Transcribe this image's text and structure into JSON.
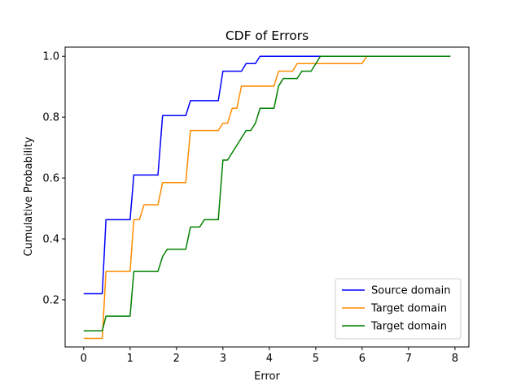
{
  "chart_data": {
    "type": "line",
    "title": "CDF of Errors",
    "xlabel": "Error",
    "ylabel": "Cumulative Probability",
    "xlim": [
      -0.4,
      8.3
    ],
    "ylim": [
      0.045,
      1.03
    ],
    "x_ticks": [
      0,
      1,
      2,
      3,
      4,
      5,
      6,
      7,
      8
    ],
    "y_ticks": [
      0.2,
      0.4,
      0.6,
      0.8,
      1.0
    ],
    "grid": false,
    "legend_position": "lower-right",
    "series": [
      {
        "name": "Source domain",
        "color": "#0000ff",
        "points": [
          [
            0,
            0.22
          ],
          [
            0.4,
            0.22
          ],
          [
            0.48,
            0.463
          ],
          [
            1.0,
            0.463
          ],
          [
            1.08,
            0.61
          ],
          [
            1.6,
            0.61
          ],
          [
            1.7,
            0.805
          ],
          [
            2.2,
            0.805
          ],
          [
            2.3,
            0.854
          ],
          [
            2.9,
            0.854
          ],
          [
            3.0,
            0.951
          ],
          [
            3.4,
            0.951
          ],
          [
            3.5,
            0.976
          ],
          [
            3.7,
            0.976
          ],
          [
            3.8,
            1.0
          ],
          [
            7.9,
            1.0
          ]
        ]
      },
      {
        "name": "Target domain",
        "color": "#ff8c00",
        "points": [
          [
            0,
            0.073
          ],
          [
            0.4,
            0.073
          ],
          [
            0.48,
            0.293
          ],
          [
            1.0,
            0.293
          ],
          [
            1.08,
            0.463
          ],
          [
            1.2,
            0.463
          ],
          [
            1.3,
            0.512
          ],
          [
            1.6,
            0.512
          ],
          [
            1.7,
            0.585
          ],
          [
            2.2,
            0.585
          ],
          [
            2.3,
            0.756
          ],
          [
            2.9,
            0.756
          ],
          [
            3.0,
            0.78
          ],
          [
            3.1,
            0.78
          ],
          [
            3.2,
            0.829
          ],
          [
            3.3,
            0.829
          ],
          [
            3.4,
            0.902
          ],
          [
            4.1,
            0.902
          ],
          [
            4.2,
            0.951
          ],
          [
            4.5,
            0.951
          ],
          [
            4.6,
            0.976
          ],
          [
            6.0,
            0.976
          ],
          [
            6.1,
            1.0
          ],
          [
            7.9,
            1.0
          ]
        ]
      },
      {
        "name": "Target domain",
        "color": "#008000",
        "points": [
          [
            0,
            0.098
          ],
          [
            0.4,
            0.098
          ],
          [
            0.48,
            0.146
          ],
          [
            1.0,
            0.146
          ],
          [
            1.08,
            0.293
          ],
          [
            1.6,
            0.293
          ],
          [
            1.7,
            0.342
          ],
          [
            1.8,
            0.366
          ],
          [
            2.2,
            0.366
          ],
          [
            2.3,
            0.439
          ],
          [
            2.5,
            0.439
          ],
          [
            2.6,
            0.463
          ],
          [
            2.9,
            0.463
          ],
          [
            3.0,
            0.659
          ],
          [
            3.1,
            0.659
          ],
          [
            3.5,
            0.756
          ],
          [
            3.6,
            0.756
          ],
          [
            3.7,
            0.78
          ],
          [
            3.8,
            0.829
          ],
          [
            4.1,
            0.829
          ],
          [
            4.2,
            0.902
          ],
          [
            4.3,
            0.927
          ],
          [
            4.6,
            0.927
          ],
          [
            4.7,
            0.951
          ],
          [
            4.9,
            0.951
          ],
          [
            5.1,
            1.0
          ],
          [
            7.9,
            1.0
          ]
        ]
      }
    ]
  }
}
